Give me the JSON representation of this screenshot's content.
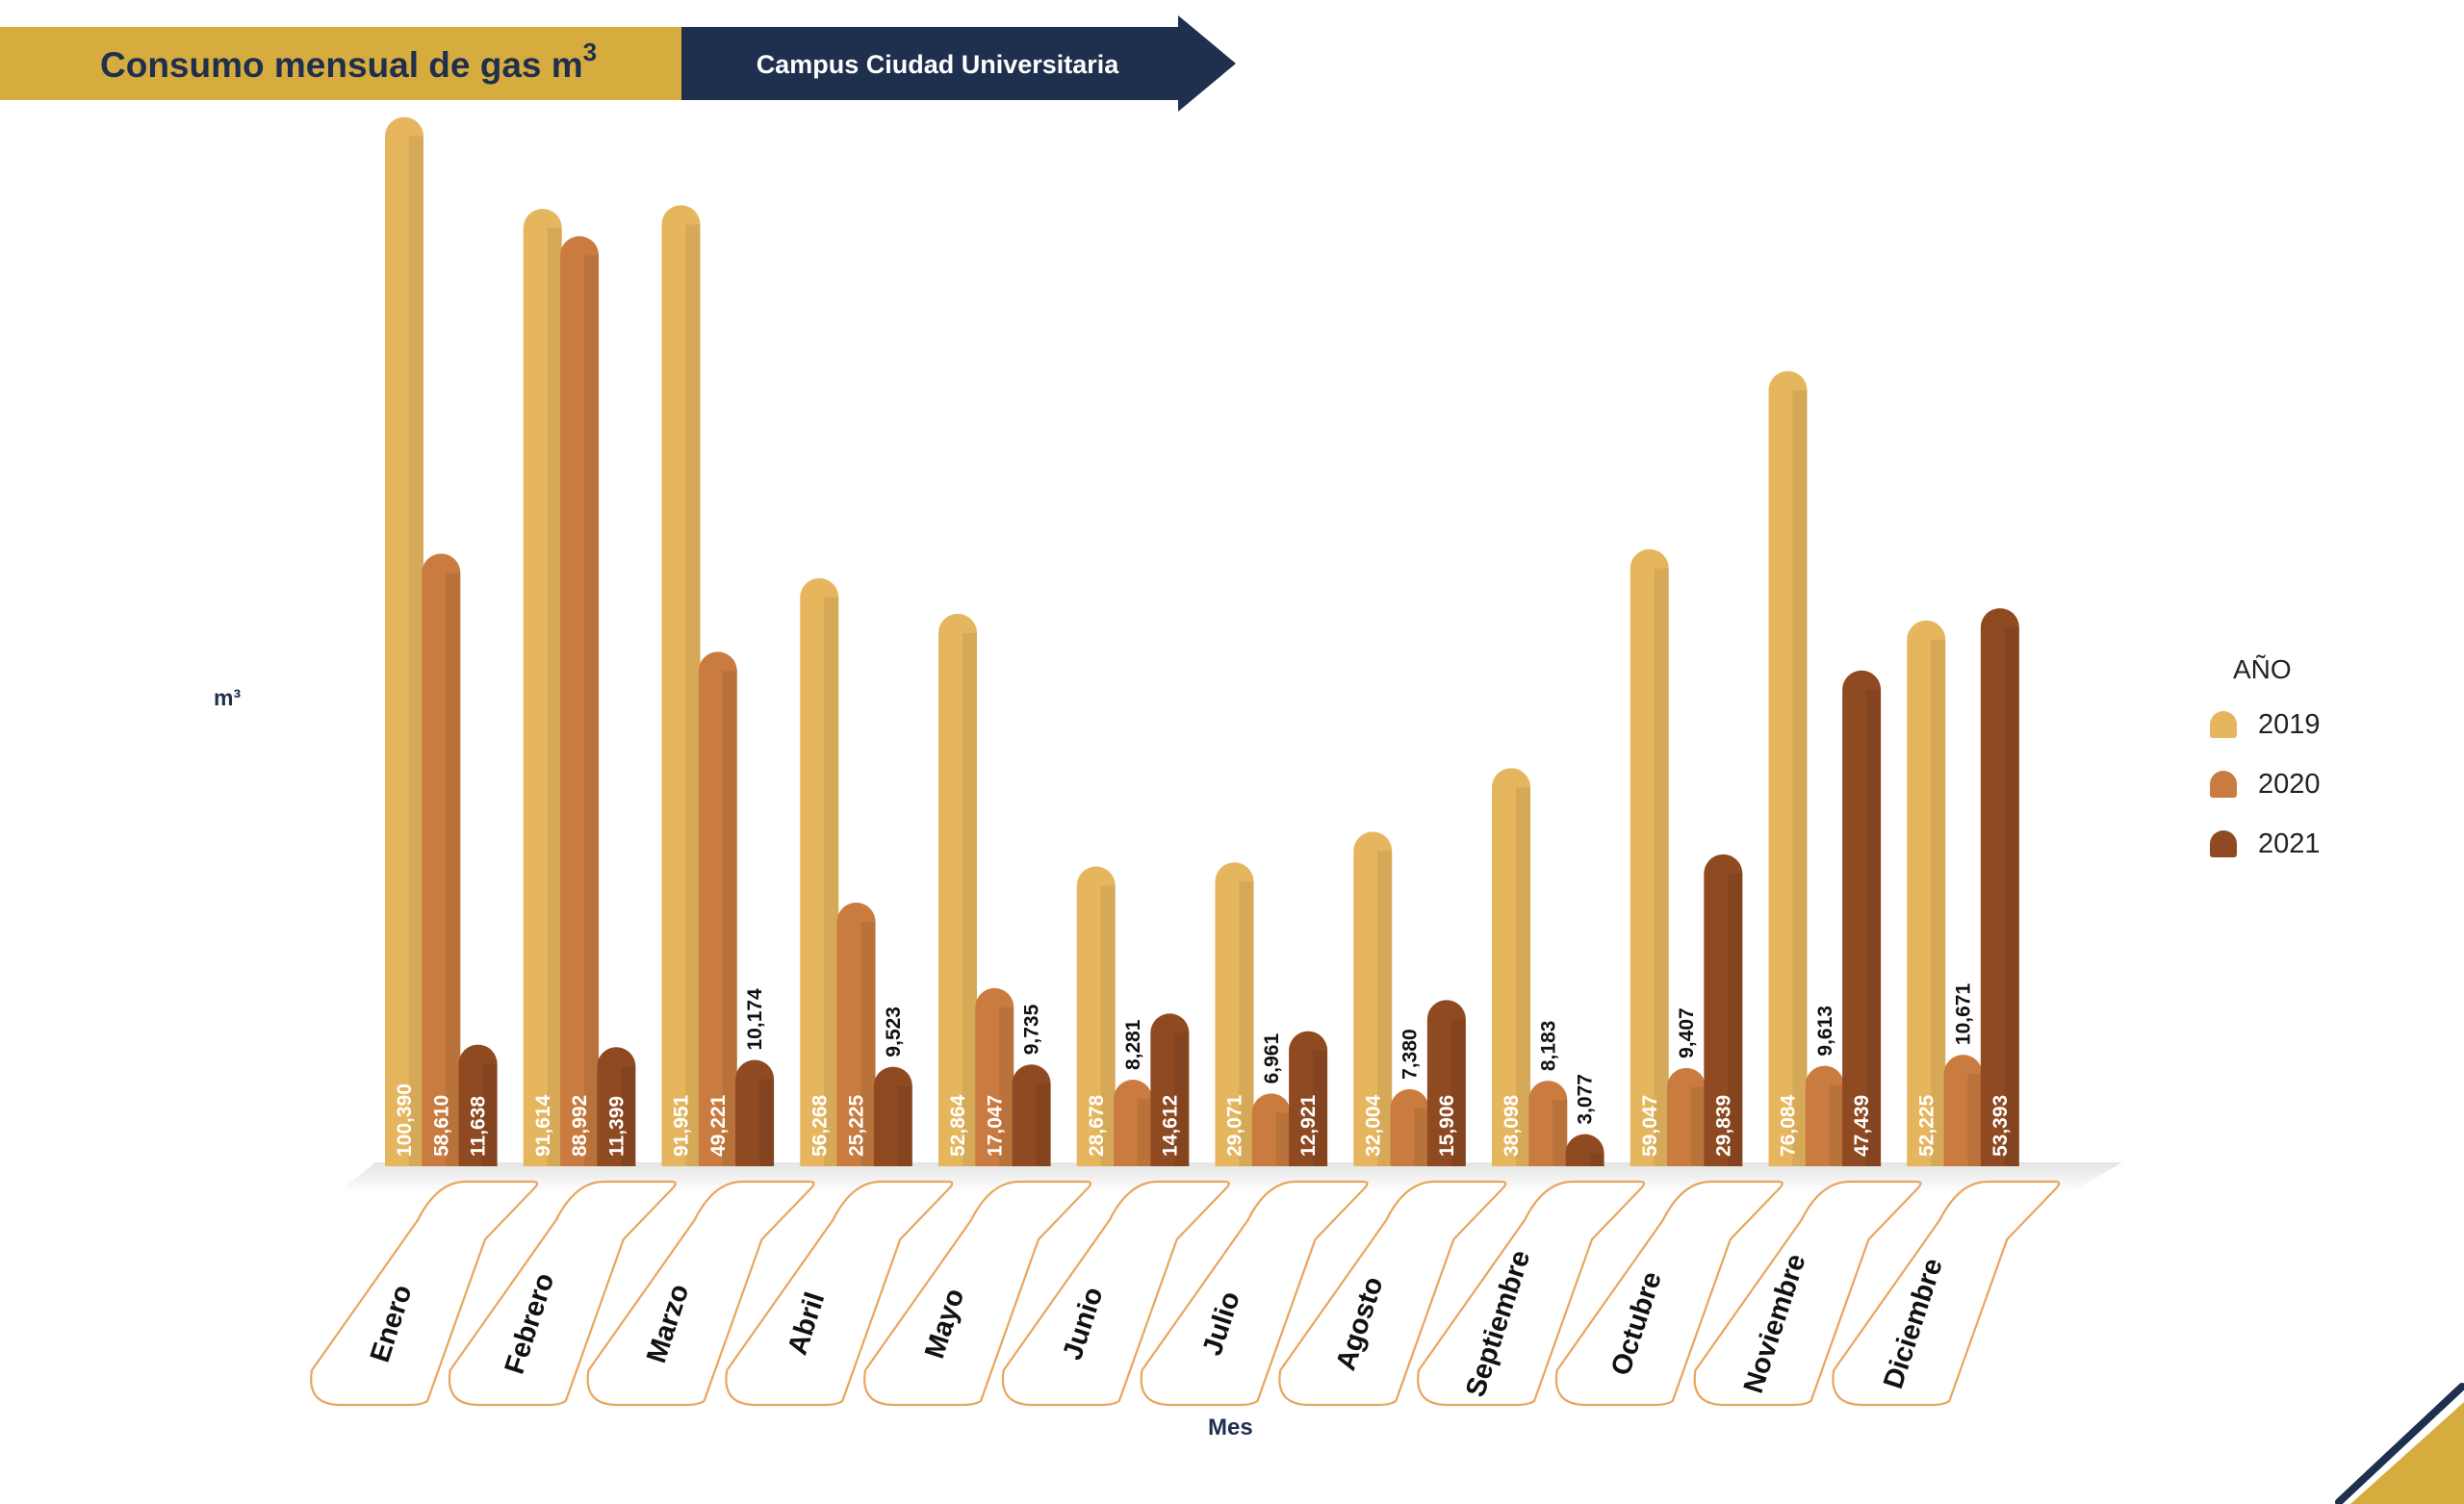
{
  "header": {
    "title": "Consumo mensual de gas m",
    "title_sup": "3",
    "subtitle": "Campus Ciudad Universitaria"
  },
  "colors": {
    "header_gold": "#d6ac3e",
    "header_navy": "#1f2f4e",
    "series_2019": "#e6b65f",
    "series_2020": "#c97b40",
    "series_2021": "#8f4a22",
    "month_tag_border": "#e9a55d"
  },
  "chart_data": {
    "type": "bar",
    "title": "Consumo mensual de gas m3",
    "subtitle": "Campus Ciudad Universitaria",
    "xlabel": "Mes",
    "ylabel": "m³",
    "legend_title": "AÑO",
    "legend_position": "right",
    "grid": false,
    "ylim": [
      0,
      101000
    ],
    "categories": [
      "Enero",
      "Febrero",
      "Marzo",
      "Abril",
      "Mayo",
      "Junio",
      "Julio",
      "Agosto",
      "Septiembre",
      "Octubre",
      "Noviembre",
      "Diciembre"
    ],
    "series": [
      {
        "name": "2019",
        "values": [
          100390,
          91614,
          91951,
          56268,
          52864,
          28678,
          29071,
          32004,
          38098,
          59047,
          76084,
          52225
        ],
        "labels": [
          "100,390",
          "91,614",
          "91,951",
          "56,268",
          "52,864",
          "28,678",
          "29,071",
          "32,004",
          "38,098",
          "59,047",
          "76,084",
          "52,225"
        ]
      },
      {
        "name": "2020",
        "values": [
          58610,
          88992,
          49221,
          25225,
          17047,
          8281,
          6961,
          7380,
          8183,
          9407,
          9613,
          10671
        ],
        "labels": [
          "58,610",
          "88,992",
          "49,221",
          "25,225",
          "17,047",
          "8,281",
          "6,961",
          "7,380",
          "8,183",
          "9,407",
          "9,613",
          "10,671"
        ]
      },
      {
        "name": "2021",
        "values": [
          11638,
          11399,
          10174,
          9523,
          9735,
          14612,
          12921,
          15906,
          3077,
          29839,
          47439,
          53393
        ],
        "labels": [
          "11,638",
          "11,399",
          "10,174",
          "9,523",
          "9,735",
          "14,612",
          "12,921",
          "15,906",
          "3,077",
          "29,839",
          "47,439",
          "53,393"
        ]
      }
    ]
  }
}
